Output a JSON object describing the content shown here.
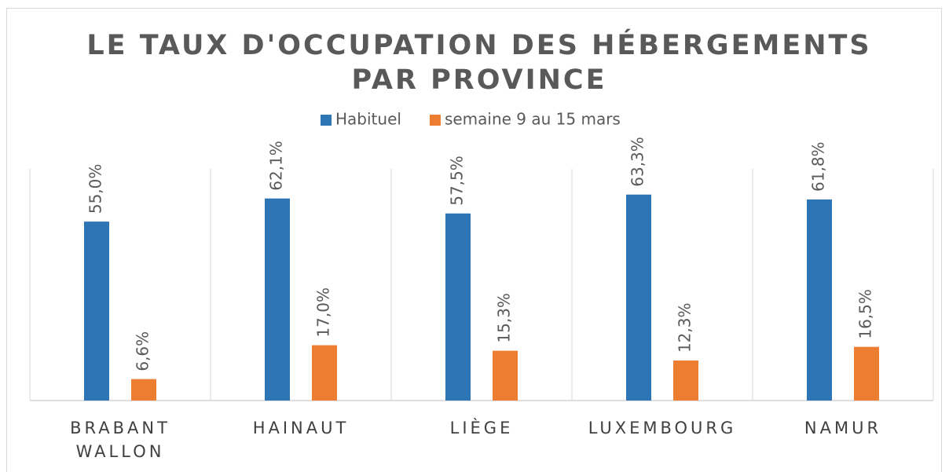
{
  "chart_data": {
    "type": "bar",
    "title": "LE TAUX D'OCCUPATION DES HÉBERGEMENTS PAR PROVINCE",
    "categories": [
      "BRABANT WALLON",
      "HAINAUT",
      "LIÈGE",
      "LUXEMBOURG",
      "NAMUR"
    ],
    "series": [
      {
        "name": "Habituel",
        "color": "#2e75b6",
        "values": [
          55.0,
          62.1,
          57.5,
          63.3,
          61.8
        ],
        "value_labels": [
          "55,0%",
          "62,1%",
          "57,5%",
          "63,3%",
          "61,8%"
        ]
      },
      {
        "name": "semaine 9 au 15 mars",
        "color": "#ed7d31",
        "values": [
          6.6,
          17.0,
          15.3,
          12.3,
          16.5
        ],
        "value_labels": [
          "6,6%",
          "17,0%",
          "15,3%",
          "12,3%",
          "16,5%"
        ]
      }
    ],
    "ylim": [
      0,
      70
    ],
    "legend": "top"
  }
}
